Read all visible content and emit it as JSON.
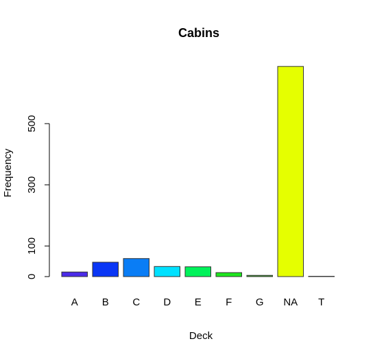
{
  "chart_data": {
    "type": "bar",
    "title": "Cabins",
    "x_label": "Deck",
    "y_label": "Frequency",
    "categories": [
      "A",
      "B",
      "C",
      "D",
      "E",
      "F",
      "G",
      "NA",
      "T"
    ],
    "values": [
      15,
      47,
      59,
      33,
      32,
      13,
      4,
      687,
      1
    ],
    "colors": [
      "#4b2be8",
      "#0a36f5",
      "#0a7df5",
      "#00e1ff",
      "#00f25a",
      "#1ee61e",
      "#3ca82a",
      "#e5ff00",
      "#8c8c8c"
    ],
    "ylim": [
      0,
      700
    ],
    "yticks": [
      0,
      100,
      300,
      500
    ],
    "grid": false
  }
}
